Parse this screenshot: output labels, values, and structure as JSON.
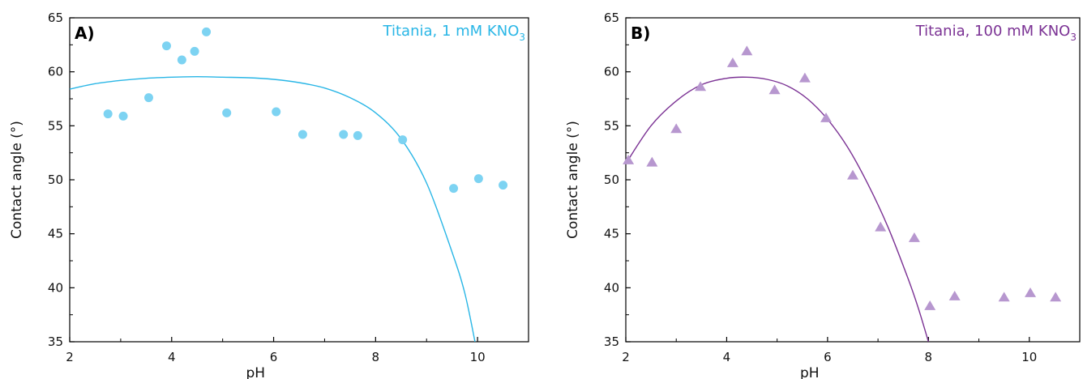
{
  "chart_data": [
    {
      "type": "scatter",
      "panel_label": "A)",
      "annotation": {
        "text": "Titania, 1 mM KNO",
        "subscript": "3"
      },
      "xlabel": "pH",
      "ylabel": "Contact angle (°)",
      "xlim": [
        2,
        11
      ],
      "ylim": [
        35,
        65
      ],
      "xticks": [
        2,
        4,
        6,
        8,
        10
      ],
      "yticks": [
        35,
        40,
        45,
        50,
        55,
        60,
        65
      ],
      "marker": "circle",
      "color": "#29b6e6",
      "marker_color": "#7dd3f2",
      "series": [
        {
          "x": [
            2.75,
            3.05,
            3.55,
            3.9,
            4.2,
            4.45,
            4.68,
            5.08,
            6.05,
            6.57,
            7.37,
            7.65,
            8.53,
            9.53,
            10.02,
            10.5
          ],
          "y": [
            56.1,
            55.9,
            57.6,
            62.4,
            61.1,
            61.9,
            63.7,
            56.2,
            56.3,
            54.2,
            54.2,
            54.1,
            53.7,
            49.2,
            50.1,
            49.5
          ]
        }
      ],
      "fit": {
        "x": [
          2,
          2.5,
          3,
          3.5,
          4,
          4.5,
          5,
          5.5,
          6,
          6.5,
          7,
          7.5,
          8,
          8.5,
          9,
          9.5,
          9.75,
          9.95
        ],
        "y": [
          58.4,
          58.9,
          59.2,
          59.4,
          59.5,
          59.55,
          59.5,
          59.45,
          59.3,
          59.0,
          58.5,
          57.6,
          56.2,
          53.8,
          49.7,
          43.3,
          39.5,
          35.0
        ]
      }
    },
    {
      "type": "scatter",
      "panel_label": "B)",
      "annotation": {
        "text": "Titania, 100 mM KNO",
        "subscript": "3"
      },
      "xlabel": "pH",
      "ylabel": "Contact angle (°)",
      "xlim": [
        2,
        11
      ],
      "ylim": [
        35,
        65
      ],
      "xticks": [
        2,
        4,
        6,
        8,
        10
      ],
      "yticks": [
        35,
        40,
        45,
        50,
        55,
        60,
        65
      ],
      "marker": "triangle",
      "color": "#7b3294",
      "marker_color": "#b797cf",
      "series": [
        {
          "x": [
            2.05,
            2.52,
            3.0,
            3.48,
            4.12,
            4.4,
            4.95,
            5.55,
            5.97,
            6.5,
            7.05,
            7.72,
            8.03,
            8.52,
            9.5,
            10.02,
            10.52
          ],
          "y": [
            51.8,
            51.6,
            54.7,
            58.6,
            60.8,
            61.9,
            58.3,
            59.4,
            55.7,
            50.4,
            45.6,
            44.6,
            38.3,
            39.2,
            39.1,
            39.5,
            39.1
          ]
        }
      ],
      "fit": {
        "x": [
          2,
          2.5,
          3,
          3.5,
          4,
          4.4,
          4.8,
          5.2,
          5.6,
          6,
          6.4,
          6.8,
          7.2,
          7.6,
          7.8,
          8.0
        ],
        "y": [
          51.5,
          55.0,
          57.3,
          58.8,
          59.4,
          59.5,
          59.3,
          58.7,
          57.5,
          55.6,
          53.0,
          49.6,
          45.6,
          40.8,
          38.1,
          35.0
        ]
      }
    }
  ]
}
